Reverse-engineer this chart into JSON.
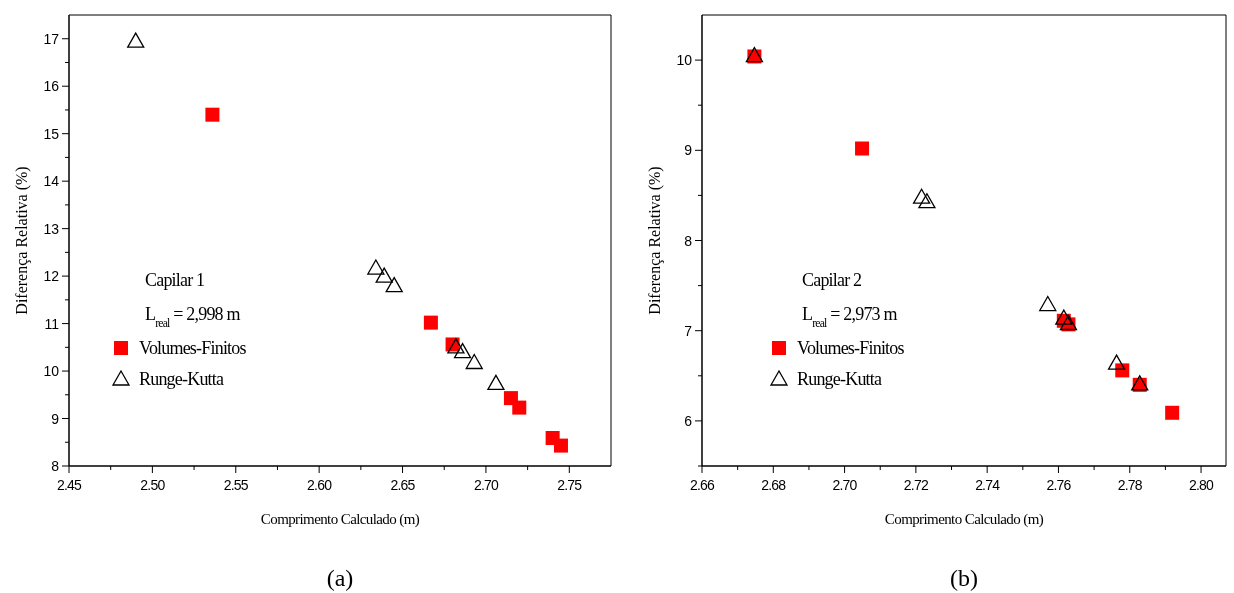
{
  "chart_data": [
    {
      "type": "scatter",
      "xlabel": "Comprimento Calculado (m)",
      "ylabel": "Diferença Relativa (%)",
      "annotations": [
        "Capilar 1",
        "L$_{real}$ = 2,998 m",
        "(a)"
      ],
      "legend": "bottom left",
      "grid": false,
      "xlim": [
        2.45,
        2.775
      ],
      "ylim": [
        8,
        17.5
      ],
      "xticks": [
        2.45,
        {
          "value": 2.475,
          "label": null
        },
        "2.50",
        {
          "value": 2.525,
          "label": null
        },
        2.55,
        {
          "value": 2.575,
          "label": null
        },
        "2.60",
        {
          "value": 2.625,
          "label": null
        },
        2.65,
        {
          "value": 2.675,
          "label": null
        },
        "2.70",
        {
          "value": 2.725,
          "label": null
        },
        2.75
      ],
      "yticks": [
        8,
        {
          "value": 8.5,
          "label": null
        },
        9,
        {
          "value": 9.5,
          "label": null
        },
        10,
        {
          "value": 10.5,
          "label": null
        },
        11,
        {
          "value": 11.5,
          "label": null
        },
        12,
        {
          "value": 12.5,
          "label": null
        },
        13,
        {
          "value": 13.5,
          "label": null
        },
        14,
        {
          "value": 14.5,
          "label": null
        },
        15,
        {
          "value": 15.5,
          "label": null
        },
        16,
        {
          "value": 16.5,
          "label": null
        },
        17
      ],
      "series": [
        {
          "name": "Volumes-Finitos",
          "color": "#ff0000",
          "marker": "square",
          "x": [
            2.536,
            2.667,
            2.68,
            2.715,
            2.72,
            2.74,
            2.745
          ],
          "values": [
            15.4,
            11.02,
            10.56,
            9.43,
            9.23,
            8.59,
            8.43
          ]
        },
        {
          "name": "Runge-Kutta",
          "color": "#000000",
          "marker": "triangle",
          "x": [
            2.49,
            2.634,
            2.639,
            2.645,
            2.682,
            2.686,
            2.693,
            2.706
          ],
          "values": [
            16.95,
            12.17,
            12.0,
            11.8,
            10.51,
            10.41,
            10.18,
            9.74
          ]
        }
      ]
    },
    {
      "type": "scatter",
      "xlabel": "Comprimento Calculado (m)",
      "ylabel": "Diferença Relativa (%)",
      "annotations": [
        "Capilar 2",
        "L$_{real}$ = 2,973 m",
        "(b)"
      ],
      "legend": "bottom left",
      "grid": false,
      "xlim": [
        2.66,
        2.807
      ],
      "ylim": [
        5.5,
        10.5
      ],
      "xticks": [
        2.66,
        {
          "value": 2.67,
          "label": null
        },
        2.68,
        {
          "value": 2.69,
          "label": null
        },
        "2.70",
        {
          "value": 2.71,
          "label": null
        },
        2.72,
        {
          "value": 2.73,
          "label": null
        },
        2.74,
        {
          "value": 2.75,
          "label": null
        },
        2.76,
        {
          "value": 2.77,
          "label": null
        },
        2.78,
        {
          "value": 2.79,
          "label": null
        },
        "2.80"
      ],
      "yticks": [
        {
          "value": 5.5,
          "label": null
        },
        6,
        {
          "value": 6.5,
          "label": null
        },
        7,
        {
          "value": 7.5,
          "label": null
        },
        8,
        {
          "value": 8.5,
          "label": null
        },
        9,
        {
          "value": 9.5,
          "label": null
        },
        10
      ],
      "series": [
        {
          "name": "Volumes-Finitos",
          "color": "#ff0000",
          "marker": "square",
          "x": [
            2.6747,
            2.7049,
            2.7615,
            2.7628,
            2.7779,
            2.7828,
            2.7919
          ],
          "values": [
            10.04,
            9.02,
            7.11,
            7.07,
            6.56,
            6.4,
            6.09
          ]
        },
        {
          "name": "Runge-Kutta",
          "color": "#000000",
          "marker": "triangle",
          "x": [
            2.6747,
            2.7216,
            2.7231,
            2.757,
            2.7615,
            2.7628,
            2.7763,
            2.7828
          ],
          "values": [
            10.05,
            8.48,
            8.43,
            7.29,
            7.14,
            7.08,
            6.64,
            6.41
          ]
        }
      ]
    }
  ]
}
